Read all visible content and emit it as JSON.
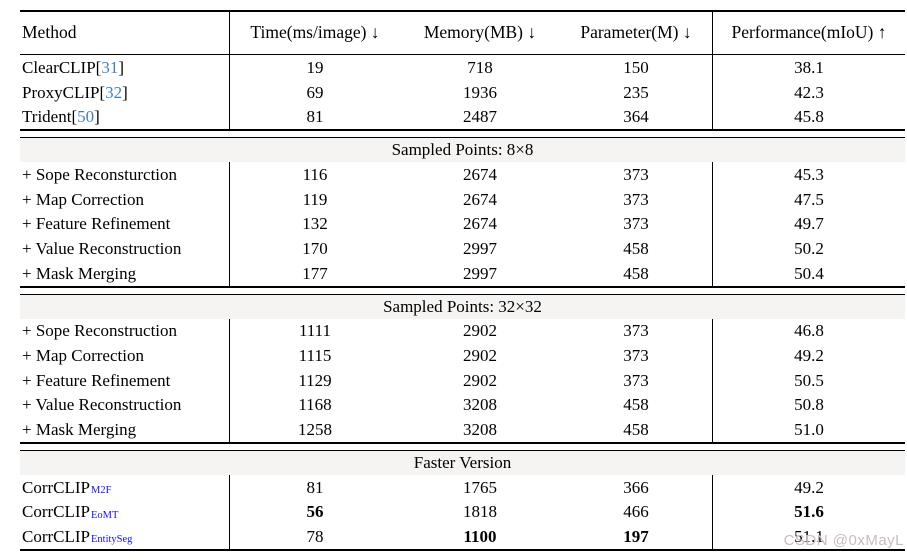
{
  "watermark": "CSDN @0xMayL",
  "colors": {
    "citation_blue": "#4380c0",
    "subscript_blue": "#1212ee",
    "section_band_bg": "#f5f4f3",
    "rule_black": "#000000"
  },
  "table": {
    "headers": [
      "Method",
      "Time(ms/image) ↓",
      "Memory(MB) ↓",
      "Parameter(M) ↓",
      "Performance(mIoU) ↑"
    ],
    "blocks": [
      {
        "section": null,
        "rows": [
          {
            "label": "ClearCLIP",
            "cite": "31",
            "values": [
              "19",
              "718",
              "150",
              "38.1"
            ],
            "bold": [
              false,
              false,
              false,
              false
            ]
          },
          {
            "label": "ProxyCLIP",
            "cite": "32",
            "values": [
              "69",
              "1936",
              "235",
              "42.3"
            ],
            "bold": [
              false,
              false,
              false,
              false
            ]
          },
          {
            "label": "Trident",
            "cite": "50",
            "values": [
              "81",
              "2487",
              "364",
              "45.8"
            ],
            "bold": [
              false,
              false,
              false,
              false
            ]
          }
        ]
      },
      {
        "section": "Sampled Points: 8×8",
        "rows": [
          {
            "label": "+ Sope Reconsturction",
            "values": [
              "116",
              "2674",
              "373",
              "45.3"
            ],
            "bold": [
              false,
              false,
              false,
              false
            ]
          },
          {
            "label": "+ Map Correction",
            "values": [
              "119",
              "2674",
              "373",
              "47.5"
            ],
            "bold": [
              false,
              false,
              false,
              false
            ]
          },
          {
            "label": "+ Feature Refinement",
            "values": [
              "132",
              "2674",
              "373",
              "49.7"
            ],
            "bold": [
              false,
              false,
              false,
              false
            ]
          },
          {
            "label": "+ Value Reconstruction",
            "values": [
              "170",
              "2997",
              "458",
              "50.2"
            ],
            "bold": [
              false,
              false,
              false,
              false
            ]
          },
          {
            "label": "+ Mask Merging",
            "values": [
              "177",
              "2997",
              "458",
              "50.4"
            ],
            "bold": [
              false,
              false,
              false,
              false
            ]
          }
        ]
      },
      {
        "section": "Sampled Points: 32×32",
        "rows": [
          {
            "label": "+ Sope Reconstruction",
            "values": [
              "1111",
              "2902",
              "373",
              "46.8"
            ],
            "bold": [
              false,
              false,
              false,
              false
            ]
          },
          {
            "label": "+ Map Correction",
            "values": [
              "1115",
              "2902",
              "373",
              "49.2"
            ],
            "bold": [
              false,
              false,
              false,
              false
            ]
          },
          {
            "label": "+ Feature Refinement",
            "values": [
              "1129",
              "2902",
              "373",
              "50.5"
            ],
            "bold": [
              false,
              false,
              false,
              false
            ]
          },
          {
            "label": "+ Value Reconstruction",
            "values": [
              "1168",
              "3208",
              "458",
              "50.8"
            ],
            "bold": [
              false,
              false,
              false,
              false
            ]
          },
          {
            "label": "+ Mask Merging",
            "values": [
              "1258",
              "3208",
              "458",
              "51.0"
            ],
            "bold": [
              false,
              false,
              false,
              false
            ]
          }
        ]
      },
      {
        "section": "Faster Version",
        "rows": [
          {
            "label": "CorrCLIP",
            "sub": "M2F",
            "values": [
              "81",
              "1765",
              "366",
              "49.2"
            ],
            "bold": [
              false,
              false,
              false,
              false
            ]
          },
          {
            "label": "CorrCLIP",
            "sub": "EoMT",
            "values": [
              "56",
              "1818",
              "466",
              "51.6"
            ],
            "bold": [
              true,
              false,
              false,
              true
            ]
          },
          {
            "label": "CorrCLIP",
            "sub": "EntitySeg",
            "values": [
              "78",
              "1100",
              "197",
              "51.1"
            ],
            "bold": [
              false,
              true,
              true,
              false
            ]
          }
        ]
      }
    ]
  }
}
